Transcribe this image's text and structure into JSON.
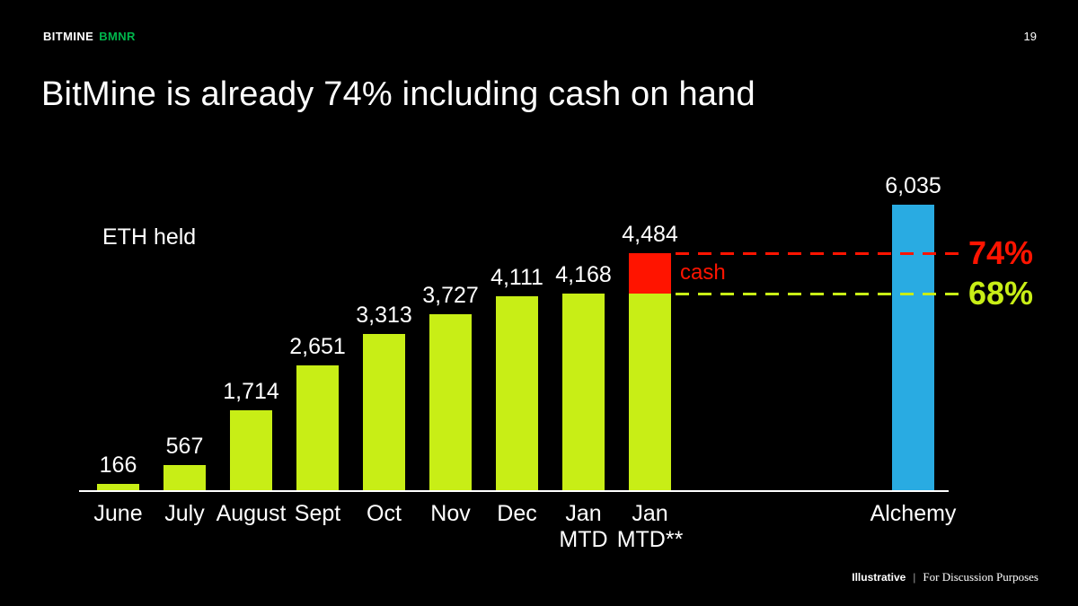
{
  "header": {
    "brand": "BITMINE",
    "ticker": "BMNR",
    "ticker_color": "#00b64c",
    "page_number": "19"
  },
  "title": "BitMine is already 74% including cash on hand",
  "footer": {
    "tag1": "Illustrative",
    "separator": "|",
    "tag2": "For Discussion Purposes"
  },
  "chart_data": {
    "type": "bar",
    "xlabel": "",
    "ylabel": "ETH held",
    "ylim": [
      0,
      6400
    ],
    "grid": false,
    "legend": false,
    "colors": {
      "eth_bar": "#c8ee16",
      "alchemy_bar": "#29abe2",
      "cash": "#ff1400"
    },
    "bars": [
      {
        "category": "June",
        "value": 166,
        "display": "166",
        "series": "eth"
      },
      {
        "category": "July",
        "value": 567,
        "display": "567",
        "series": "eth"
      },
      {
        "category": "August",
        "value": 1714,
        "display": "1,714",
        "series": "eth"
      },
      {
        "category": "Sept",
        "value": 2651,
        "display": "2,651",
        "series": "eth"
      },
      {
        "category": "Oct",
        "value": 3313,
        "display": "3,313",
        "series": "eth"
      },
      {
        "category": "Nov",
        "value": 3727,
        "display": "3,727",
        "series": "eth"
      },
      {
        "category": "Dec",
        "value": 4111,
        "display": "4,111",
        "series": "eth"
      },
      {
        "category": "Jan\nMTD",
        "value": 4168,
        "display": "4,168",
        "series": "eth"
      },
      {
        "category": "Jan\nMTD**",
        "value": 4484,
        "display": "4,484",
        "series": "eth+cash",
        "segments": [
          {
            "name": "eth",
            "value": 4168
          },
          {
            "name": "cash",
            "value": 316
          }
        ]
      },
      {
        "category": "Alchemy",
        "value": 6035,
        "display": "6,035",
        "series": "alchemy"
      }
    ],
    "segment_label": "cash",
    "annotations": [
      {
        "text": "74%",
        "percent_of_alchemy": 74,
        "color": "#ff1400",
        "style": "dashed"
      },
      {
        "text": "68%",
        "percent_of_alchemy": 68,
        "color": "#c8ee16",
        "style": "dashed"
      }
    ]
  }
}
